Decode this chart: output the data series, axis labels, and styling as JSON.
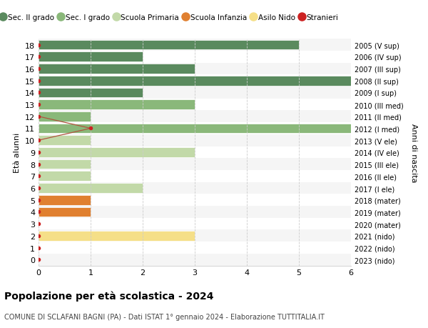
{
  "ages": [
    18,
    17,
    16,
    15,
    14,
    13,
    12,
    11,
    10,
    9,
    8,
    7,
    6,
    5,
    4,
    3,
    2,
    1,
    0
  ],
  "right_labels": [
    "2005 (V sup)",
    "2006 (IV sup)",
    "2007 (III sup)",
    "2008 (II sup)",
    "2009 (I sup)",
    "2010 (III med)",
    "2011 (II med)",
    "2012 (I med)",
    "2013 (V ele)",
    "2014 (IV ele)",
    "2015 (III ele)",
    "2016 (II ele)",
    "2017 (I ele)",
    "2018 (mater)",
    "2019 (mater)",
    "2020 (mater)",
    "2021 (nido)",
    "2022 (nido)",
    "2023 (nido)"
  ],
  "bar_values": [
    5,
    2,
    3,
    6,
    2,
    3,
    1,
    6,
    1,
    3,
    1,
    1,
    2,
    1,
    1,
    0,
    3,
    0,
    0
  ],
  "bar_colors": [
    "#5a8a5e",
    "#5a8a5e",
    "#5a8a5e",
    "#5a8a5e",
    "#5a8a5e",
    "#8ab87a",
    "#8ab87a",
    "#8ab87a",
    "#c2d9a8",
    "#c2d9a8",
    "#c2d9a8",
    "#c2d9a8",
    "#c2d9a8",
    "#e08030",
    "#e08030",
    "#e08030",
    "#f5df88",
    "#f5df88",
    "#f5df88"
  ],
  "stranieri_color": "#cc2222",
  "line_color": "#b05540",
  "bar_height": 0.82,
  "xlim": [
    0,
    6
  ],
  "ylim": [
    -0.5,
    18.5
  ],
  "ylabel": "Età alunni",
  "right_ylabel": "Anni di nascita",
  "title": "Popolazione per età scolastica - 2024",
  "subtitle": "COMUNE DI SCLAFANI BAGNI (PA) - Dati ISTAT 1° gennaio 2024 - Elaborazione TUTTITALIA.IT",
  "legend_labels": [
    "Sec. II grado",
    "Sec. I grado",
    "Scuola Primaria",
    "Scuola Infanzia",
    "Asilo Nido",
    "Stranieri"
  ],
  "legend_colors": [
    "#5a8a5e",
    "#8ab87a",
    "#c2d9a8",
    "#e08030",
    "#f5df88",
    "#cc2222"
  ],
  "grid_color": "#cccccc",
  "row_even_color": "#f5f5f5",
  "row_odd_color": "#ffffff",
  "bg_color": "#ffffff",
  "xticks": [
    0,
    1,
    2,
    3,
    4,
    5,
    6
  ]
}
